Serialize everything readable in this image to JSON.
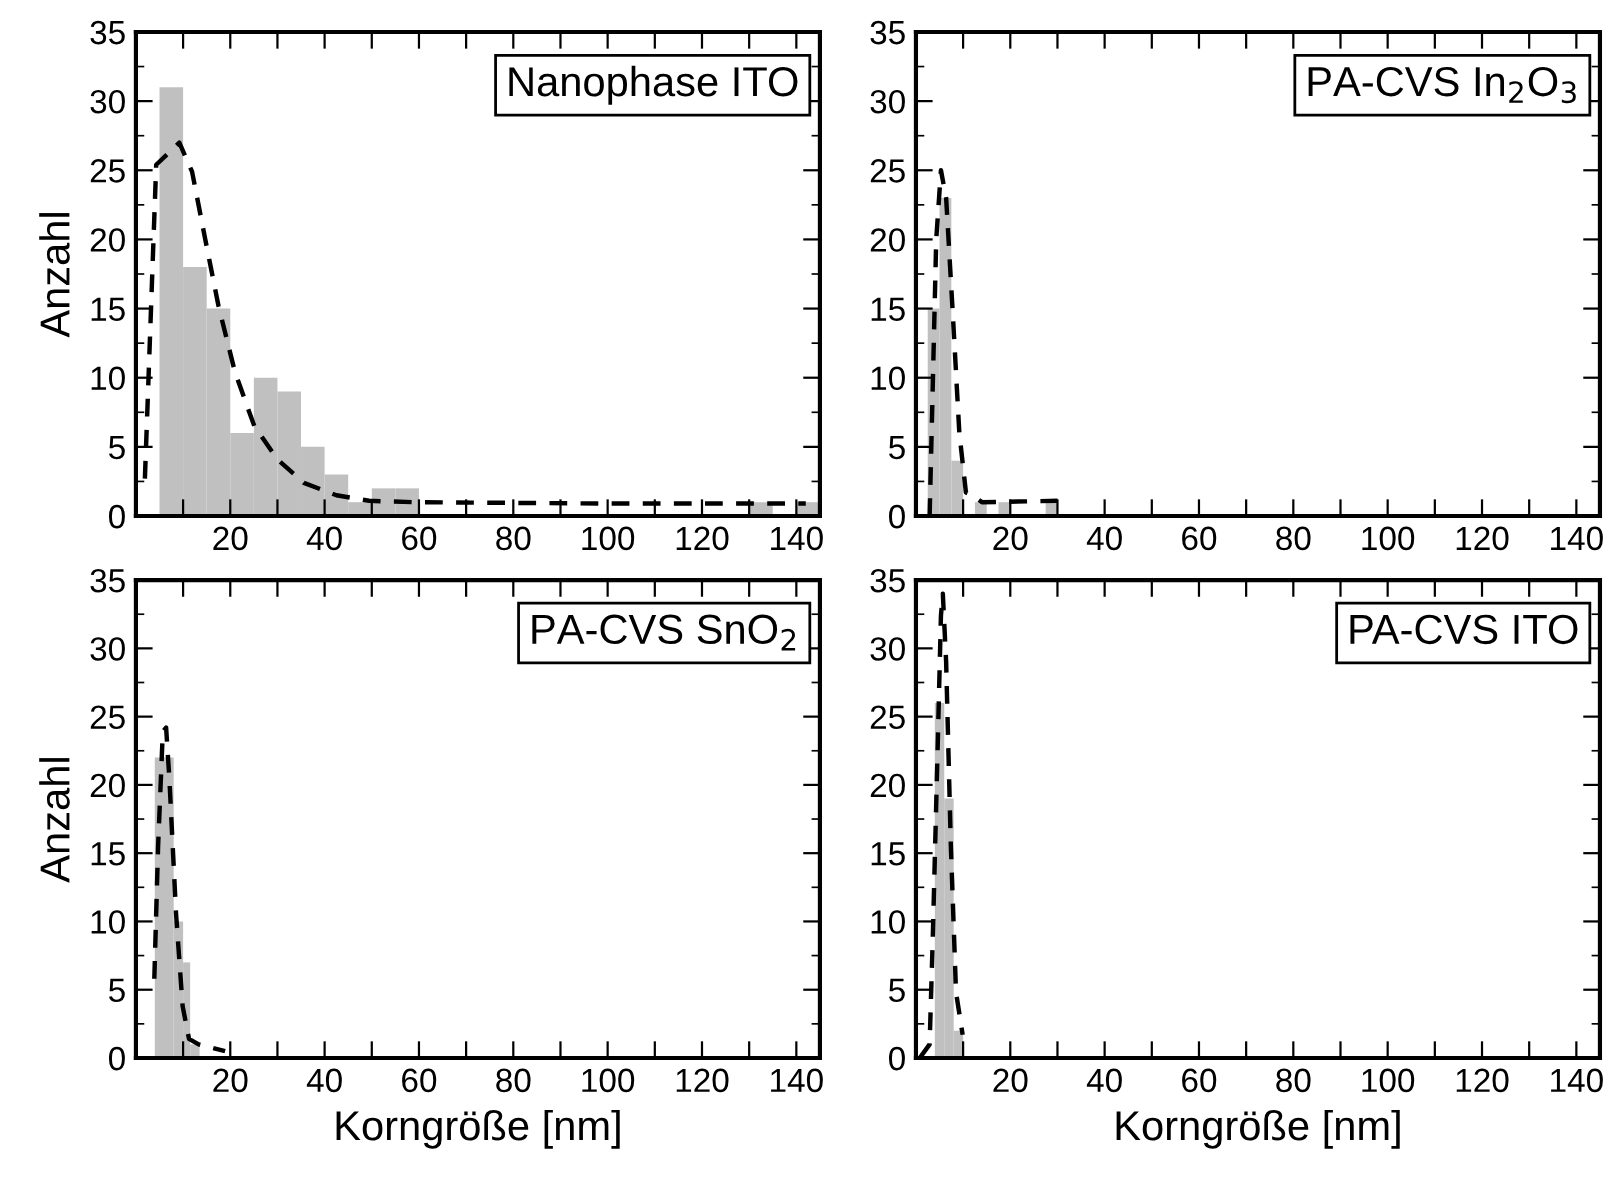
{
  "chart_data": [
    {
      "type": "histogram",
      "ylabel": "Anzahl",
      "annotations": [
        "Nanophase ITO"
      ],
      "xlim": [
        0,
        145
      ],
      "ylim": [
        0,
        35
      ],
      "xticks": [
        {
          "value": 10,
          "label": null
        },
        20,
        {
          "value": 30,
          "label": null
        },
        40,
        {
          "value": 50,
          "label": null
        },
        60,
        {
          "value": 70,
          "label": null
        },
        80,
        {
          "value": 90,
          "label": null
        },
        100,
        {
          "value": 110,
          "label": null
        },
        120,
        {
          "value": 130,
          "label": null
        },
        140
      ],
      "yticks": [
        0,
        5,
        10,
        15,
        20,
        25,
        30,
        35
      ],
      "grid": false,
      "series": [
        {
          "color": "#c0c0c0",
          "bins": [
            5,
            10,
            15,
            20,
            25,
            30,
            35,
            40,
            45,
            50,
            55,
            60,
            65,
            70,
            75,
            80,
            85,
            90,
            95,
            100,
            105,
            110,
            115,
            120,
            125,
            130,
            135,
            140,
            145
          ],
          "values": [
            31,
            18,
            15,
            6,
            10,
            9,
            5,
            3,
            1,
            2,
            2,
            0,
            0,
            0,
            0,
            0,
            0,
            0,
            0,
            0,
            0,
            0,
            0,
            0,
            0,
            1,
            0,
            1
          ]
        },
        {
          "type": "line",
          "color": "#000000",
          "line_style": "dashed",
          "x": [
            1.9,
            4.3,
            9.2,
            11.9,
            14.7,
            17.5,
            21,
            25.1,
            30,
            35.6,
            42.5,
            49.4,
            59,
            100,
            142
          ],
          "values": [
            2.7,
            25.4,
            27,
            24.9,
            20,
            15.2,
            10.4,
            6.5,
            4.1,
            2.4,
            1.5,
            1.1,
            1.0,
            0.9,
            0.9
          ]
        }
      ]
    },
    {
      "type": "histogram",
      "annotations": [
        "PA-CVS In$_{2}$O$_{3}$"
      ],
      "xlim": [
        0,
        145
      ],
      "ylim": [
        0,
        35
      ],
      "xticks": [
        {
          "value": 10,
          "label": null
        },
        20,
        {
          "value": 30,
          "label": null
        },
        40,
        {
          "value": 50,
          "label": null
        },
        60,
        {
          "value": 70,
          "label": null
        },
        80,
        {
          "value": 90,
          "label": null
        },
        100,
        {
          "value": 110,
          "label": null
        },
        120,
        {
          "value": 130,
          "label": null
        },
        140
      ],
      "yticks": [
        0,
        5,
        10,
        15,
        20,
        25,
        30,
        35
      ],
      "grid": false,
      "series": [
        {
          "color": "#c0c0c0",
          "bins": [
            2.5,
            5,
            7.5,
            10,
            12.5,
            15,
            17.5,
            20,
            22.5,
            25,
            27.5,
            30
          ],
          "values": [
            15,
            23,
            4,
            0,
            1,
            0,
            1,
            0,
            0,
            0,
            1
          ]
        },
        {
          "type": "line",
          "color": "#000000",
          "line_style": "dashed",
          "x": [
            2.9,
            3.6,
            4.3,
            5.3,
            6.4,
            7.8,
            9.2,
            10.6,
            11.9,
            14,
            30
          ],
          "values": [
            0,
            9.9,
            20,
            25,
            23,
            14.7,
            6,
            1.7,
            1.5,
            1.0,
            1.1
          ]
        }
      ]
    },
    {
      "type": "histogram",
      "ylabel": "Anzahl",
      "xlabel": "Korngröße [nm]",
      "annotations": [
        "PA-CVS SnO$_{2}$"
      ],
      "xlim": [
        0,
        145
      ],
      "ylim": [
        0,
        35
      ],
      "xticks": [
        {
          "value": 10,
          "label": null
        },
        20,
        {
          "value": 30,
          "label": null
        },
        40,
        {
          "value": 50,
          "label": null
        },
        60,
        {
          "value": 70,
          "label": null
        },
        80,
        {
          "value": 90,
          "label": null
        },
        100,
        {
          "value": 110,
          "label": null
        },
        120,
        {
          "value": 130,
          "label": null
        },
        140
      ],
      "yticks": [
        0,
        5,
        10,
        15,
        20,
        25,
        30,
        35
      ],
      "grid": false,
      "series": [
        {
          "color": "#c0c0c0",
          "bins": [
            4,
            8,
            10,
            11.5,
            13.5
          ],
          "values": [
            22,
            10,
            7,
            1
          ]
        },
        {
          "type": "line",
          "color": "#000000",
          "line_style": "dashed",
          "x": [
            3.9,
            4.7,
            5.7,
            6.4,
            7.1,
            8.5,
            9.9,
            11.25,
            13.3,
            18.9
          ],
          "values": [
            5.8,
            15.5,
            23.9,
            24.2,
            20.4,
            10.6,
            3.8,
            1.4,
            1.0,
            0.5
          ]
        }
      ]
    },
    {
      "type": "histogram",
      "xlabel": "Korngröße [nm]",
      "annotations": [
        "PA-CVS ITO"
      ],
      "xlim": [
        0,
        145
      ],
      "ylim": [
        0,
        35
      ],
      "xticks": [
        {
          "value": 10,
          "label": null
        },
        20,
        {
          "value": 30,
          "label": null
        },
        40,
        {
          "value": 50,
          "label": null
        },
        60,
        {
          "value": 70,
          "label": null
        },
        80,
        {
          "value": 90,
          "label": null
        },
        100,
        {
          "value": 110,
          "label": null
        },
        120,
        {
          "value": 130,
          "label": null
        },
        140
      ],
      "yticks": [
        0,
        5,
        10,
        15,
        20,
        25,
        30,
        35
      ],
      "grid": false,
      "series": [
        {
          "color": "#c0c0c0",
          "bins": [
            4,
            6,
            8,
            10
          ],
          "values": [
            26,
            19,
            2
          ]
        },
        {
          "type": "line",
          "color": "#000000",
          "line_style": "dashed",
          "x": [
            0.8,
            2.9,
            3.6,
            4.6,
            5.3,
            5.7,
            6.4,
            7.4,
            8.5,
            9.9
          ],
          "values": [
            0,
            1,
            9.2,
            22.7,
            32.4,
            34,
            29,
            15.5,
            4.8,
            1.7
          ]
        }
      ]
    }
  ]
}
